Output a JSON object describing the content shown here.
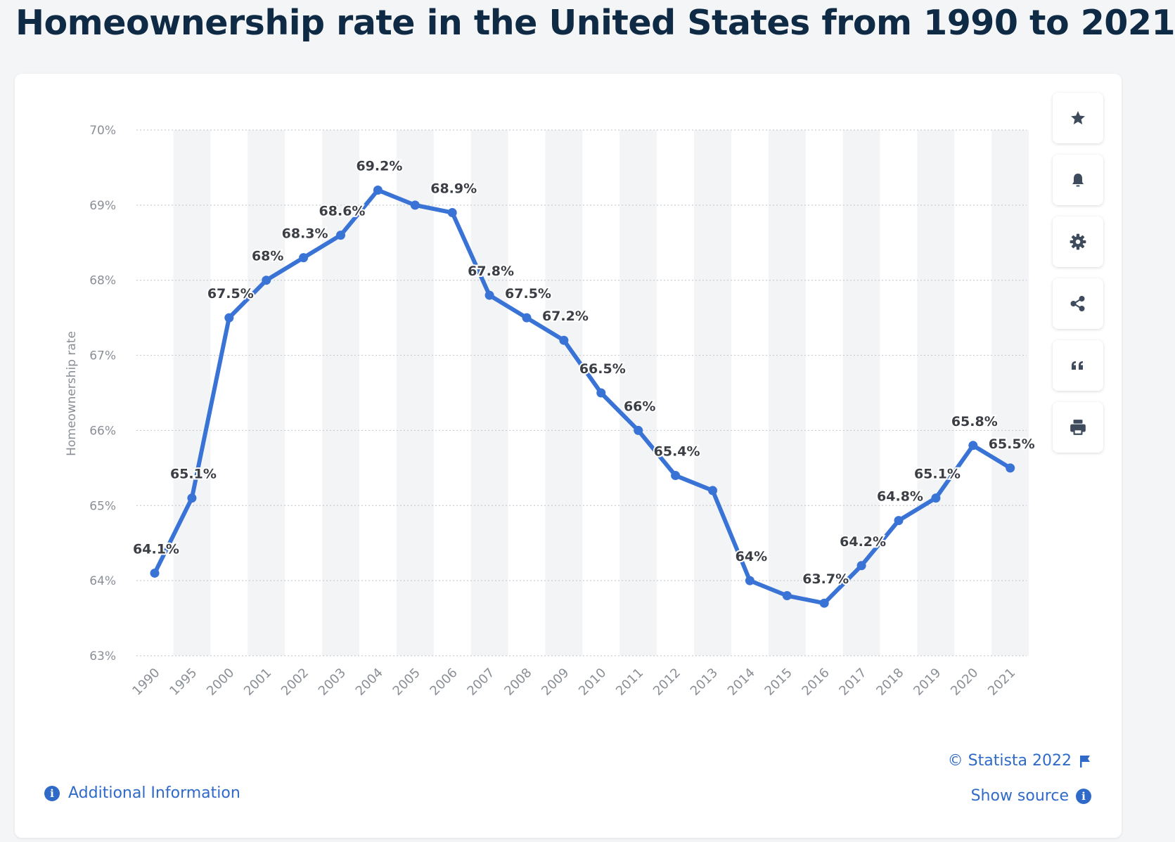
{
  "page": {
    "title": "Homeownership rate in the United States from 1990 to 2021"
  },
  "colors": {
    "line": "#3a73d6",
    "title": "#0f2a44",
    "link": "#2f6ac9",
    "grid": "#c9cdd3",
    "band": "#f3f4f6",
    "axis_text": "#8a8f96",
    "label_text": "#3b3f45"
  },
  "toolbar": {
    "items": [
      {
        "name": "favorite-button",
        "icon": "star-icon"
      },
      {
        "name": "notification-button",
        "icon": "bell-icon"
      },
      {
        "name": "settings-button",
        "icon": "gear-icon"
      },
      {
        "name": "share-button",
        "icon": "share-icon"
      },
      {
        "name": "cite-button",
        "icon": "quote-icon"
      },
      {
        "name": "print-button",
        "icon": "printer-icon"
      }
    ]
  },
  "footer": {
    "credit": "© Statista 2022",
    "show_source": "Show source",
    "additional_info": "Additional Information"
  },
  "chart_data": {
    "type": "line",
    "title": "Homeownership rate in the United States from 1990 to 2021",
    "xlabel": "",
    "ylabel": "Homeownership rate",
    "ylim": [
      63,
      70
    ],
    "yticks": [
      63,
      64,
      65,
      66,
      67,
      68,
      69,
      70
    ],
    "ytick_suffix": "%",
    "grid": true,
    "categories": [
      "1990",
      "1995",
      "2000",
      "2001",
      "2002",
      "2003",
      "2004",
      "2005",
      "2006",
      "2007",
      "2008",
      "2009",
      "2010",
      "2011",
      "2012",
      "2013",
      "2014",
      "2015",
      "2016",
      "2017",
      "2018",
      "2019",
      "2020",
      "2021"
    ],
    "series": [
      {
        "values": [
          64.1,
          65.1,
          67.5,
          68,
          68.3,
          68.6,
          69.2,
          69,
          68.9,
          67.8,
          67.5,
          67.2,
          66.5,
          66,
          65.4,
          65.2,
          64,
          63.8,
          63.7,
          64.2,
          64.8,
          65.1,
          65.8,
          65.5
        ],
        "labels": [
          "64.1%",
          "65.1%",
          "67.5%",
          "68%",
          "68.3%",
          "68.6%",
          "69.2%",
          "",
          "68.9%",
          "67.8%",
          "67.5%",
          "67.2%",
          "66.5%",
          "66%",
          "65.4%",
          "",
          "64%",
          "",
          "63.7%",
          "64.2%",
          "64.8%",
          "65.1%",
          "65.8%",
          "65.5%"
        ]
      }
    ]
  }
}
